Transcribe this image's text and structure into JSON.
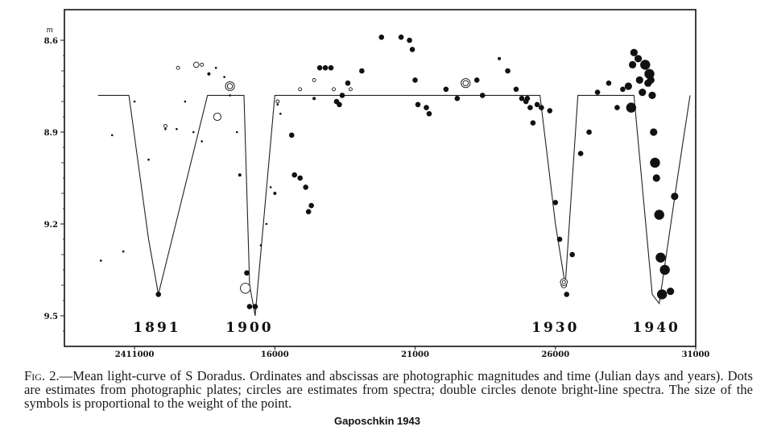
{
  "chart_data": {
    "type": "scatter",
    "title": "Mean light-curve of S Doradus",
    "x_unit": "Julian days",
    "y_unit": "m",
    "xlim": [
      2408500,
      2431000
    ],
    "ylim": [
      9.6,
      8.5
    ],
    "x_ticks": [
      2411000,
      2416000,
      2421000,
      2426000,
      2431000
    ],
    "x_tick_labels": [
      "2411000",
      "16000",
      "21000",
      "26000",
      "31000"
    ],
    "y_ticks": [
      8.6,
      8.9,
      9.2,
      9.5
    ],
    "y_tick_labels": [
      "8.6",
      "8.9",
      "9.2",
      "9.5"
    ],
    "y_unit_label": "m",
    "year_labels": [
      {
        "text": "1891",
        "jd": 2411800
      },
      {
        "text": "1900",
        "jd": 2415100
      },
      {
        "text": "1930",
        "jd": 2426000
      },
      {
        "text": "1940",
        "jd": 2429600
      }
    ],
    "mean_curve": {
      "x": [
        2409700,
        2410800,
        2411500,
        2411850,
        2413600,
        2414900,
        2415100,
        2415300,
        2416000,
        2425450,
        2426000,
        2426350,
        2426800,
        2428200,
        2428800,
        2429450,
        2429700,
        2430350,
        2430800
      ],
      "y": [
        8.78,
        8.78,
        9.25,
        9.43,
        8.78,
        8.78,
        9.4,
        9.5,
        8.78,
        8.78,
        9.2,
        9.4,
        8.78,
        8.78,
        8.78,
        9.43,
        9.46,
        9.05,
        8.78
      ]
    },
    "series": [
      {
        "name": "Dots (photographic plates)",
        "x": [
          2409800,
          2410200,
          2410600,
          2411000,
          2411500,
          2411850,
          2412100,
          2412500,
          2412800,
          2413100,
          2413400,
          2413650,
          2413900,
          2414200,
          2414400,
          2414650,
          2414750,
          2414900,
          2415000,
          2415100,
          2415300,
          2415500,
          2415700,
          2415850,
          2416000,
          2416100,
          2416200,
          2416600,
          2416700,
          2416900,
          2417100,
          2417200,
          2417300,
          2417400,
          2417600,
          2417800,
          2418000,
          2418200,
          2418300,
          2418400,
          2418600,
          2419100,
          2419800,
          2420500,
          2420800,
          2420900,
          2421000,
          2421100,
          2421400,
          2421500,
          2422100,
          2422500,
          2423200,
          2423400,
          2424000,
          2424300,
          2424600,
          2424800,
          2424950,
          2425000,
          2425100,
          2425200,
          2425350,
          2425500,
          2425800,
          2426000,
          2426150,
          2426400,
          2426600,
          2426900,
          2427200,
          2427500,
          2427900,
          2428200,
          2428400,
          2428600,
          2428700,
          2428750,
          2428800,
          2428950,
          2429000,
          2429100,
          2429200,
          2429300,
          2429350,
          2429400,
          2429450,
          2429500,
          2429550,
          2429600,
          2429700,
          2429750,
          2429800,
          2429900,
          2430100,
          2430250
        ],
        "y": [
          9.32,
          8.91,
          9.29,
          8.8,
          8.99,
          9.43,
          8.89,
          8.89,
          8.8,
          8.9,
          8.93,
          8.71,
          8.69,
          8.72,
          8.78,
          8.9,
          9.04,
          9.41,
          9.36,
          9.47,
          9.47,
          9.27,
          9.2,
          9.08,
          9.1,
          8.81,
          8.84,
          8.91,
          9.04,
          9.05,
          9.08,
          9.16,
          9.14,
          8.79,
          8.69,
          8.69,
          8.69,
          8.8,
          8.81,
          8.78,
          8.74,
          8.7,
          8.59,
          8.59,
          8.6,
          8.63,
          8.73,
          8.81,
          8.82,
          8.84,
          8.76,
          8.79,
          8.73,
          8.78,
          8.66,
          8.7,
          8.76,
          8.79,
          8.8,
          8.79,
          8.82,
          8.87,
          8.81,
          8.82,
          8.83,
          9.13,
          9.25,
          9.43,
          9.3,
          8.97,
          8.9,
          8.77,
          8.74,
          8.82,
          8.76,
          8.75,
          8.82,
          8.68,
          8.64,
          8.66,
          8.73,
          8.77,
          8.68,
          8.74,
          8.71,
          8.73,
          8.78,
          8.9,
          9.0,
          9.05,
          9.17,
          9.31,
          9.43,
          9.35,
          9.42,
          9.11
        ],
        "weights": [
          1,
          1,
          1,
          1,
          1,
          3,
          1,
          1,
          1,
          1,
          1,
          2,
          1,
          1,
          1,
          1,
          2,
          3,
          3,
          3,
          3,
          1,
          1,
          1,
          2,
          1,
          1,
          3,
          3,
          3,
          3,
          3,
          3,
          2,
          3,
          3,
          3,
          3,
          3,
          3,
          3,
          3,
          3,
          3,
          3,
          3,
          3,
          3,
          3,
          3,
          3,
          3,
          3,
          3,
          2,
          3,
          3,
          3,
          3,
          3,
          3,
          3,
          3,
          3,
          3,
          3,
          3,
          3,
          3,
          3,
          3,
          3,
          3,
          3,
          3,
          4,
          5,
          4,
          4,
          4,
          4,
          4,
          5,
          4,
          5,
          4,
          4,
          4,
          5,
          4,
          5,
          5,
          5,
          5,
          4,
          4
        ]
      },
      {
        "name": "Circles (spectra)",
        "x": [
          2412100,
          2412550,
          2413200,
          2413400,
          2413950,
          2414950,
          2416100,
          2416900,
          2417400,
          2418100,
          2418700,
          2426300
        ],
        "y": [
          8.88,
          8.69,
          8.68,
          8.68,
          8.85,
          9.41,
          8.8,
          8.76,
          8.73,
          8.76,
          8.76,
          9.4
        ],
        "weights": [
          2,
          2,
          3,
          2,
          4,
          5,
          2,
          2,
          2,
          2,
          2,
          3
        ]
      },
      {
        "name": "Double circles (bright-line spectra)",
        "x": [
          2414400,
          2422800,
          2426300
        ],
        "y": [
          8.75,
          8.74,
          9.39
        ],
        "weights": [
          4,
          4,
          3
        ]
      }
    ]
  },
  "caption": {
    "fig_label": "Fig. 2.",
    "text": "—Mean light-curve of S Doradus. Ordinates and abscissas are photographic magnitudes and time (Julian days and years). Dots are estimates from photographic plates; circles are estimates from spectra; double circles denote bright-line spectra. The size of the symbols is proportional to the weight of the point."
  },
  "credit": "Gaposchkin 1943"
}
